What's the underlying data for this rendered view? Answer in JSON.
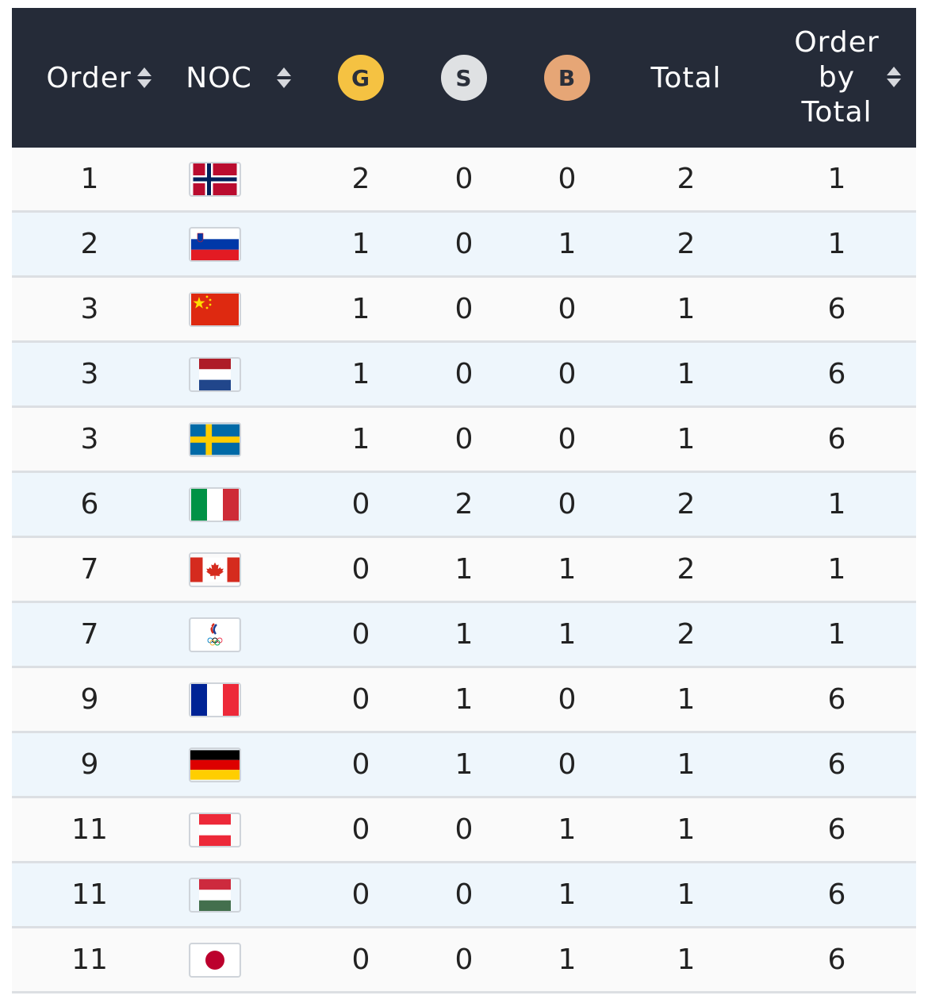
{
  "header": {
    "order": "Order",
    "noc": "NOC",
    "gold": "G",
    "silver": "S",
    "bronze": "B",
    "total": "Total",
    "order_by_total_1": "Order",
    "order_by_total_2": "by",
    "order_by_total_3": "Total"
  },
  "colors": {
    "header_bg": "#252b38",
    "gold": "#f5c242",
    "silver": "#dfe1e3",
    "bronze": "#e6a676",
    "row_odd": "#fafafa",
    "row_even": "#eef6fc"
  },
  "rows": [
    {
      "order": "1",
      "flag": "norway-flag",
      "g": "2",
      "s": "0",
      "b": "0",
      "total": "2",
      "obt": "1"
    },
    {
      "order": "2",
      "flag": "slovenia-flag",
      "g": "1",
      "s": "0",
      "b": "1",
      "total": "2",
      "obt": "1"
    },
    {
      "order": "3",
      "flag": "china-flag",
      "g": "1",
      "s": "0",
      "b": "0",
      "total": "1",
      "obt": "6"
    },
    {
      "order": "3",
      "flag": "netherlands-flag",
      "g": "1",
      "s": "0",
      "b": "0",
      "total": "1",
      "obt": "6"
    },
    {
      "order": "3",
      "flag": "sweden-flag",
      "g": "1",
      "s": "0",
      "b": "0",
      "total": "1",
      "obt": "6"
    },
    {
      "order": "6",
      "flag": "italy-flag",
      "g": "0",
      "s": "2",
      "b": "0",
      "total": "2",
      "obt": "1"
    },
    {
      "order": "7",
      "flag": "canada-flag",
      "g": "0",
      "s": "1",
      "b": "1",
      "total": "2",
      "obt": "1"
    },
    {
      "order": "7",
      "flag": "roc-flag",
      "g": "0",
      "s": "1",
      "b": "1",
      "total": "2",
      "obt": "1"
    },
    {
      "order": "9",
      "flag": "france-flag",
      "g": "0",
      "s": "1",
      "b": "0",
      "total": "1",
      "obt": "6"
    },
    {
      "order": "9",
      "flag": "germany-flag",
      "g": "0",
      "s": "1",
      "b": "0",
      "total": "1",
      "obt": "6"
    },
    {
      "order": "11",
      "flag": "austria-flag",
      "g": "0",
      "s": "0",
      "b": "1",
      "total": "1",
      "obt": "6"
    },
    {
      "order": "11",
      "flag": "hungary-flag",
      "g": "0",
      "s": "0",
      "b": "1",
      "total": "1",
      "obt": "6"
    },
    {
      "order": "11",
      "flag": "japan-flag",
      "g": "0",
      "s": "0",
      "b": "1",
      "total": "1",
      "obt": "6"
    }
  ]
}
